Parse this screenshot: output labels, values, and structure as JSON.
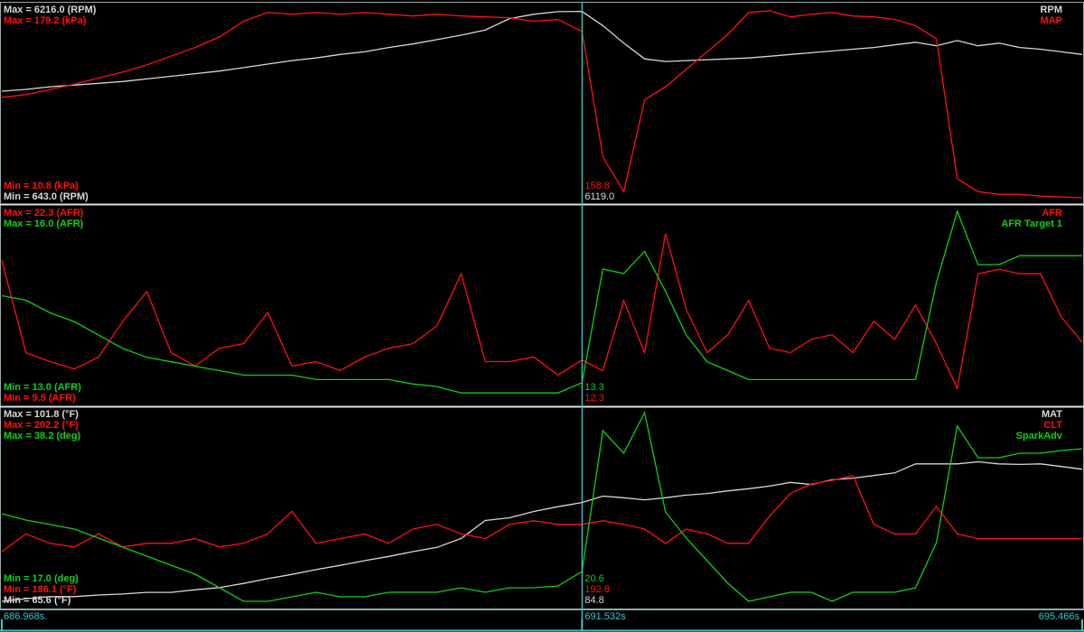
{
  "chart_data": {
    "type": "line",
    "xlim": [
      686.968,
      695.466
    ],
    "xticks": [
      {
        "value": 686.968,
        "label": "686.968s."
      },
      {
        "value": 691.532,
        "label": "691.532s"
      },
      {
        "value": 695.466,
        "label": "695.466s"
      }
    ],
    "x": [
      686.968,
      687.158,
      687.348,
      687.539,
      687.729,
      687.919,
      688.109,
      688.299,
      688.489,
      688.68,
      688.87,
      689.06,
      689.25,
      689.44,
      689.63,
      689.821,
      690.011,
      690.201,
      690.391,
      690.581,
      690.771,
      690.962,
      691.152,
      691.342,
      691.532,
      691.696,
      691.86,
      692.024,
      692.188,
      692.352,
      692.516,
      692.679,
      692.843,
      693.007,
      693.171,
      693.335,
      693.499,
      693.663,
      693.827,
      693.991,
      694.155,
      694.319,
      694.483,
      694.647,
      694.811,
      694.975,
      695.138,
      695.302,
      695.466
    ],
    "panels": [
      {
        "series": [
          {
            "name": "RPM",
            "color": "#d8d8d8",
            "ylim": [
              643,
              6216
            ],
            "max_label": "Max = 6216.0 (RPM)",
            "min_label": "Min = 643.0 (RPM)",
            "cursor_label": "6119.0",
            "values": [
              3809,
              3860,
              3936,
              3987,
              4037,
              4088,
              4164,
              4240,
              4316,
              4392,
              4493,
              4594,
              4696,
              4772,
              4873,
              4949,
              5076,
              5177,
              5304,
              5430,
              5582,
              5912,
              6038,
              6114,
              6119,
              5709,
              5202,
              4746,
              4670,
              4696,
              4721,
              4746,
              4772,
              4822,
              4873,
              4924,
              4974,
              5025,
              5076,
              5152,
              5228,
              5126,
              5278,
              5126,
              5202,
              5076,
              5025,
              4949,
              4873
            ]
          },
          {
            "name": "MAP",
            "color": "#ff1010",
            "ylim": [
              10.8,
              179.2
            ],
            "max_label": "Max = 179.2 (kPa)",
            "min_label": "Min = 10.8 (kPa)",
            "cursor_label": "158.8",
            "values": [
              101.1,
              103.4,
              108.0,
              112.6,
              118.0,
              123.3,
              129.5,
              137.1,
              144.8,
              154.0,
              167.7,
              175.4,
              173.8,
              175.4,
              173.8,
              175.4,
              173.8,
              172.3,
              173.8,
              172.3,
              171.5,
              170.8,
              167.7,
              169.3,
              158.8,
              48.9,
              18.5,
              98.8,
              110.3,
              125.6,
              140.9,
              156.2,
              175.4,
              176.9,
              171.5,
              173.8,
              175.4,
              172.3,
              171.5,
              169.3,
              163.9,
              152.4,
              29.9,
              18.5,
              16.2,
              16.2,
              14.6,
              13.9,
              13.1
            ]
          }
        ]
      },
      {
        "series": [
          {
            "name": "AFR",
            "color": "#ff1010",
            "ylim": [
              9.5,
              22.3
            ],
            "max_label": "Max = 22.3 (AFR)",
            "min_label": "Min = 9.5 (AFR)",
            "cursor_label": "12.3",
            "values": [
              19.0,
              12.8,
              12.2,
              11.7,
              12.5,
              14.9,
              16.9,
              12.8,
              11.9,
              13.1,
              13.4,
              15.5,
              11.9,
              12.2,
              11.6,
              12.5,
              13.1,
              13.4,
              14.6,
              18.1,
              12.2,
              12.2,
              12.5,
              11.3,
              12.3,
              11.6,
              16.3,
              12.8,
              20.8,
              15.7,
              12.8,
              14.0,
              16.3,
              13.1,
              12.8,
              13.7,
              14.0,
              12.8,
              14.9,
              13.7,
              16.0,
              13.4,
              10.4,
              18.1,
              18.4,
              18.1,
              18.1,
              15.2,
              13.5
            ]
          },
          {
            "name": "AFR Target 1",
            "color": "#10d010",
            "ylim": [
              13.0,
              16.0
            ],
            "max_label": "Max = 16.0 (AFR)",
            "min_label": "Min = 13.0 (AFR)",
            "cursor_label": "13.3",
            "values": [
              14.67,
              14.6,
              14.4,
              14.26,
              14.05,
              13.84,
              13.7,
              13.63,
              13.56,
              13.49,
              13.42,
              13.42,
              13.42,
              13.35,
              13.35,
              13.35,
              13.35,
              13.28,
              13.24,
              13.14,
              13.14,
              13.14,
              13.14,
              13.14,
              13.3,
              15.09,
              15.02,
              15.37,
              14.74,
              14.05,
              13.63,
              13.49,
              13.35,
              13.35,
              13.35,
              13.35,
              13.35,
              13.35,
              13.35,
              13.35,
              13.35,
              14.88,
              16.0,
              15.16,
              15.16,
              15.3,
              15.3,
              15.3,
              15.3
            ]
          }
        ]
      },
      {
        "series": [
          {
            "name": "MAT",
            "color": "#d8d8d8",
            "ylim": [
              65.6,
              101.8
            ],
            "max_label": "Max = 101.8 (°F)",
            "min_label": "Min = 65.6 (°F)",
            "cursor_label": "84.8",
            "values": [
              66.1,
              66.6,
              67.0,
              67.0,
              67.3,
              67.5,
              67.8,
              67.8,
              68.3,
              68.7,
              69.5,
              70.4,
              71.2,
              72.1,
              72.9,
              73.8,
              74.6,
              75.5,
              76.3,
              78.0,
              81.4,
              81.9,
              83.1,
              84.0,
              84.8,
              86.0,
              85.7,
              85.3,
              85.7,
              86.2,
              86.5,
              87.0,
              87.4,
              87.9,
              88.6,
              88.2,
              89.1,
              89.4,
              89.9,
              90.4,
              92.1,
              92.1,
              92.1,
              92.5,
              92.1,
              92.0,
              92.1,
              91.6,
              91.1
            ]
          },
          {
            "name": "CLT",
            "color": "#ff1010",
            "ylim": [
              186.1,
              202.2
            ],
            "max_label": "Max = 202.2 (°F)",
            "min_label": "Min = 186.1 (°F)",
            "cursor_label": "192.8",
            "values": [
              190.5,
              192.0,
              191.2,
              190.9,
              192.0,
              190.9,
              191.2,
              191.2,
              191.6,
              190.9,
              191.2,
              192.0,
              193.9,
              191.2,
              191.6,
              192.0,
              191.2,
              192.4,
              192.8,
              192.0,
              191.6,
              192.8,
              193.1,
              192.8,
              192.8,
              193.1,
              192.8,
              192.4,
              191.2,
              192.4,
              192.0,
              191.2,
              191.2,
              193.5,
              195.4,
              196.2,
              196.5,
              196.9,
              192.8,
              192.0,
              192.0,
              194.3,
              192.0,
              191.6,
              191.6,
              191.6,
              191.6,
              191.6,
              191.6
            ]
          },
          {
            "name": "SparkAdv",
            "color": "#10d010",
            "ylim": [
              17.0,
              38.2
            ],
            "max_label": "Max = 38.2 (deg)",
            "min_label": "Min = 17.0 (deg)",
            "cursor_label": "20.6",
            "values": [
              27.0,
              26.3,
              25.8,
              25.3,
              24.3,
              23.3,
              22.3,
              21.3,
              20.3,
              18.8,
              17.3,
              17.3,
              17.8,
              18.3,
              17.8,
              17.8,
              18.3,
              18.3,
              18.3,
              18.8,
              18.3,
              18.8,
              18.8,
              19.0,
              20.6,
              36.2,
              33.7,
              38.2,
              27.2,
              24.3,
              21.8,
              19.3,
              17.3,
              17.8,
              18.3,
              18.3,
              17.3,
              18.3,
              18.3,
              18.3,
              18.8,
              23.8,
              36.7,
              33.2,
              33.2,
              33.7,
              33.7,
              34.0,
              34.2
            ]
          }
        ]
      }
    ]
  }
}
